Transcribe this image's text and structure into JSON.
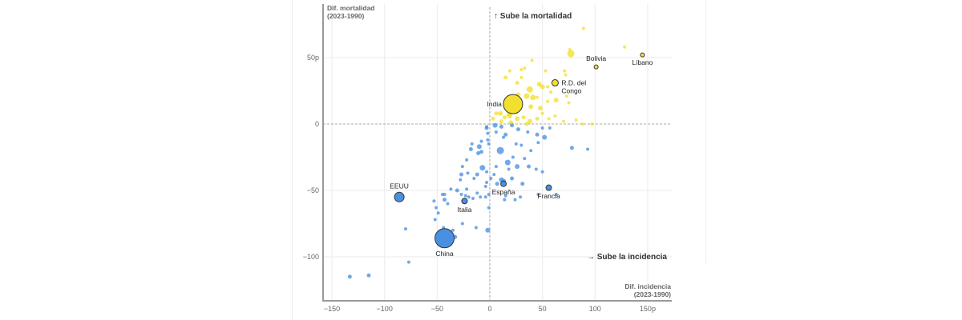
{
  "chart_data": {
    "type": "scatter",
    "xlabel_line1": "Dif. incidencia",
    "xlabel_line2": "(2023-1990)",
    "ylabel_line1": "Dif. mortalidad",
    "ylabel_line2": "(2023-1990)",
    "xlim": [
      -160,
      172
    ],
    "ylim": [
      -134,
      92
    ],
    "x_ticks": [
      {
        "value": -150,
        "label": "−150"
      },
      {
        "value": -100,
        "label": "−100"
      },
      {
        "value": -50,
        "label": "−50"
      },
      {
        "value": 0,
        "label": "0"
      },
      {
        "value": 50,
        "label": "50"
      },
      {
        "value": 100,
        "label": "100"
      },
      {
        "value": 150,
        "label": "150p"
      }
    ],
    "y_ticks": [
      {
        "value": 50,
        "label": "50p"
      },
      {
        "value": 0,
        "label": "0"
      },
      {
        "value": -50,
        "label": "−50"
      },
      {
        "value": -100,
        "label": "−100"
      }
    ],
    "grid": true,
    "annotations": {
      "up": "↑ Sube la mortalidad",
      "right": "→ Sube la incidencia"
    },
    "colors": {
      "increase": "#f2e02e",
      "decrease": "#4a90e2",
      "highlight_stroke": "#333333",
      "grid": "#ebebeb",
      "axis": "#999999"
    },
    "labeled_points": [
      {
        "name": "India",
        "x": 22,
        "y": 15,
        "size": 12,
        "group": "up",
        "label_pos": "left"
      },
      {
        "name": "R.D. del Congo",
        "line1": "R.D. del",
        "line2": "Congo",
        "x": 62,
        "y": 31,
        "size": 4,
        "group": "up",
        "label_pos": "right"
      },
      {
        "name": "Bolivia",
        "x": 101,
        "y": 43,
        "size": 2.5,
        "group": "up",
        "label_pos": "top"
      },
      {
        "name": "Líbano",
        "x": 145,
        "y": 52,
        "size": 2.5,
        "group": "up",
        "label_pos": "bottom"
      },
      {
        "name": "EEUU",
        "x": -86,
        "y": -55,
        "size": 6,
        "group": "down",
        "label_pos": "top"
      },
      {
        "name": "China",
        "x": -43,
        "y": -86,
        "size": 12,
        "group": "down",
        "label_pos": "bottom"
      },
      {
        "name": "Italia",
        "x": -24,
        "y": -58,
        "size": 3.5,
        "group": "down",
        "label_pos": "bottom"
      },
      {
        "name": "España",
        "x": 13,
        "y": -45,
        "size": 3.5,
        "group": "down",
        "label_pos": "bottom"
      },
      {
        "name": "Francia",
        "x": 56,
        "y": -48,
        "size": 3.5,
        "group": "down",
        "label_pos": "bottom"
      }
    ],
    "points": [
      [
        89,
        72,
        2
      ],
      [
        76,
        56,
        2
      ],
      [
        40,
        48,
        2
      ],
      [
        128,
        58,
        2
      ],
      [
        77,
        53,
        4.5
      ],
      [
        19,
        40,
        2
      ],
      [
        33,
        42,
        2
      ],
      [
        30,
        41,
        2
      ],
      [
        53,
        40,
        2
      ],
      [
        71,
        40,
        2
      ],
      [
        72,
        37,
        2
      ],
      [
        26,
        31,
        2.5
      ],
      [
        30,
        35,
        2
      ],
      [
        15,
        35,
        2.5
      ],
      [
        47,
        30,
        3
      ],
      [
        50,
        28,
        3
      ],
      [
        55,
        28,
        2
      ],
      [
        38,
        26,
        4
      ],
      [
        35,
        21,
        3.5
      ],
      [
        41,
        20,
        3.5
      ],
      [
        58,
        24,
        2
      ],
      [
        45,
        20,
        2
      ],
      [
        55,
        17,
        2
      ],
      [
        63,
        18,
        3
      ],
      [
        73,
        21,
        2
      ],
      [
        27,
        22,
        3
      ],
      [
        28,
        13,
        4
      ],
      [
        39,
        13,
        3
      ],
      [
        48,
        12,
        3
      ],
      [
        25,
        9,
        3
      ],
      [
        18,
        7,
        3
      ],
      [
        10,
        8,
        3
      ],
      [
        6,
        8,
        2.5
      ],
      [
        3,
        4,
        2.5
      ],
      [
        14,
        5,
        2.5
      ],
      [
        19,
        6,
        3
      ],
      [
        26,
        4,
        3
      ],
      [
        32,
        5,
        2.5
      ],
      [
        38,
        2,
        3
      ],
      [
        45,
        4,
        2.5
      ],
      [
        50,
        8,
        2
      ],
      [
        56,
        4,
        2
      ],
      [
        62,
        6,
        2
      ],
      [
        70,
        2,
        2
      ],
      [
        75,
        16,
        2
      ],
      [
        82,
        3,
        2
      ],
      [
        88,
        0,
        2
      ],
      [
        97,
        0,
        2
      ],
      [
        20,
        1,
        3
      ],
      [
        11,
        2,
        2.5
      ],
      [
        35,
        0,
        2.5
      ],
      [
        -3,
        -2,
        2
      ],
      [
        5,
        -1,
        3
      ],
      [
        11,
        -2,
        2.5
      ],
      [
        21,
        -1,
        2.5
      ],
      [
        27,
        -4,
        2.5
      ],
      [
        36,
        -6,
        2
      ],
      [
        50,
        -3,
        2
      ],
      [
        -2,
        -7,
        2
      ],
      [
        15,
        -8,
        2.5
      ],
      [
        45,
        -8,
        2.5
      ],
      [
        52,
        -10,
        3
      ],
      [
        -8,
        -13,
        2
      ],
      [
        -10,
        -17,
        3
      ],
      [
        -17,
        -15,
        2
      ],
      [
        -2,
        -12,
        2
      ],
      [
        -1,
        -15,
        2
      ],
      [
        13,
        -10,
        2
      ],
      [
        25,
        -15,
        2
      ],
      [
        30,
        -16,
        2
      ],
      [
        46,
        -14,
        2
      ],
      [
        39,
        -20,
        2
      ],
      [
        78,
        -18,
        2.5
      ],
      [
        93,
        -19,
        2
      ],
      [
        10,
        -20,
        4.5
      ],
      [
        -8,
        -21,
        2.5
      ],
      [
        -18,
        -19,
        2.5
      ],
      [
        -11,
        -22,
        2.5
      ],
      [
        22,
        -25,
        2
      ],
      [
        33,
        -26,
        2
      ],
      [
        -22,
        -27,
        2
      ],
      [
        17,
        -29,
        3.5
      ],
      [
        26,
        -32,
        3
      ],
      [
        37,
        -32,
        2.5
      ],
      [
        18,
        -34,
        2
      ],
      [
        44,
        -34,
        2
      ],
      [
        50,
        -36,
        2
      ],
      [
        -26,
        -32,
        2
      ],
      [
        -7,
        -33,
        3.5
      ],
      [
        6,
        -32,
        2
      ],
      [
        -3,
        -36,
        2
      ],
      [
        -21,
        -37,
        2
      ],
      [
        4,
        -38,
        2
      ],
      [
        -27,
        -38,
        2.5
      ],
      [
        -12,
        -38,
        2.5
      ],
      [
        -15,
        -41,
        2
      ],
      [
        -28,
        -42,
        2
      ],
      [
        -3,
        -44,
        2
      ],
      [
        11,
        -42,
        3
      ],
      [
        13,
        -43,
        3
      ],
      [
        7,
        -45,
        2.5
      ],
      [
        31,
        -45,
        2.5
      ],
      [
        21,
        -41,
        2.5
      ],
      [
        1,
        -41,
        2
      ],
      [
        -4,
        -47,
        2
      ],
      [
        -37,
        -49,
        2
      ],
      [
        -31,
        -50,
        2.5
      ],
      [
        -22,
        -49,
        2
      ],
      [
        -43,
        -53,
        2
      ],
      [
        -45,
        -53,
        2
      ],
      [
        -12,
        -52,
        2
      ],
      [
        -1,
        -53,
        2
      ],
      [
        -27,
        -53,
        2
      ],
      [
        -9,
        -55,
        2
      ],
      [
        -16,
        -56,
        2
      ],
      [
        -20,
        -55,
        2
      ],
      [
        -23,
        -54,
        2
      ],
      [
        15,
        -54,
        2
      ],
      [
        -43,
        -57,
        2.5
      ],
      [
        -53,
        -58,
        2
      ],
      [
        -4,
        -55,
        2
      ],
      [
        14,
        -57,
        2
      ],
      [
        24,
        -57,
        2
      ],
      [
        29,
        -55,
        2
      ],
      [
        46,
        -53,
        2
      ],
      [
        63,
        -53,
        2
      ],
      [
        -40,
        -60,
        2
      ],
      [
        -51,
        -63,
        2
      ],
      [
        -1,
        -63,
        2
      ],
      [
        -52,
        -72,
        2
      ],
      [
        -49,
        -67,
        2
      ],
      [
        -26,
        -75,
        2
      ],
      [
        -44,
        -78,
        2
      ],
      [
        -13,
        -78,
        2
      ],
      [
        -2,
        -80,
        3
      ],
      [
        -35,
        -80,
        2
      ],
      [
        -33,
        -85,
        2.5
      ],
      [
        -36,
        -88,
        2
      ],
      [
        -80,
        -79,
        2
      ],
      [
        -77,
        -104,
        2
      ],
      [
        -133,
        -115,
        2.5
      ],
      [
        -115,
        -114,
        2.5
      ],
      [
        -3,
        -3,
        2.5
      ],
      [
        6,
        -6,
        2
      ],
      [
        57,
        -3,
        2
      ]
    ]
  }
}
